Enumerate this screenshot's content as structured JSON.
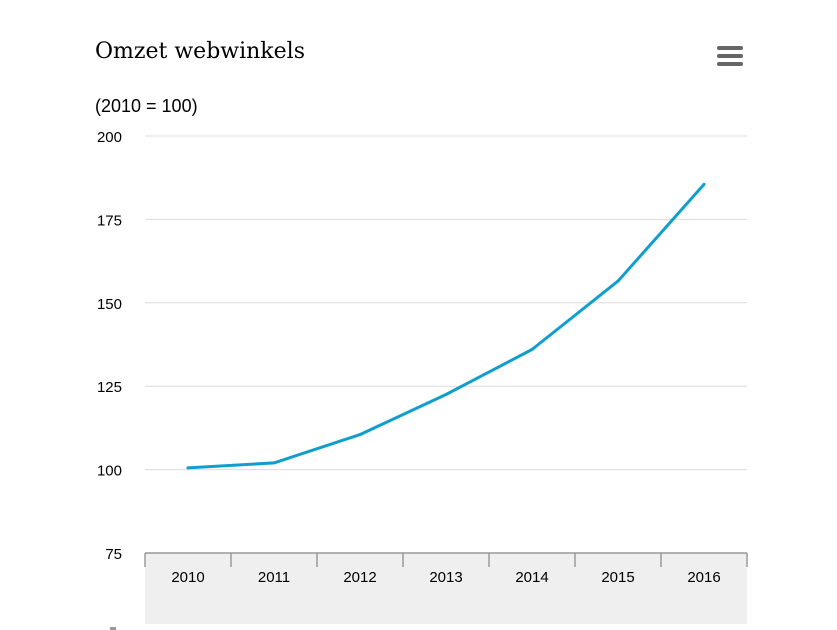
{
  "chart_data": {
    "type": "line",
    "title": "Omzet webwinkels",
    "subtitle": "(2010 = 100)",
    "xlabel": "",
    "ylabel": "",
    "categories": [
      "2010",
      "2011",
      "2012",
      "2013",
      "2014",
      "2015",
      "2016"
    ],
    "series": [
      {
        "values": [
          100.5,
          102,
          110.5,
          122.5,
          136,
          156.5,
          185.5
        ]
      }
    ],
    "ylim": [
      75,
      200
    ],
    "yticks": [
      "75",
      "100",
      "125",
      "150",
      "175",
      "200"
    ],
    "grid": true,
    "legend": "none"
  },
  "colors": {
    "series": "#109fcc",
    "axis_band": "#efefef",
    "menu_icon": "#666666"
  },
  "toolbar": {
    "menu_icon": "hamburger-menu-icon"
  }
}
